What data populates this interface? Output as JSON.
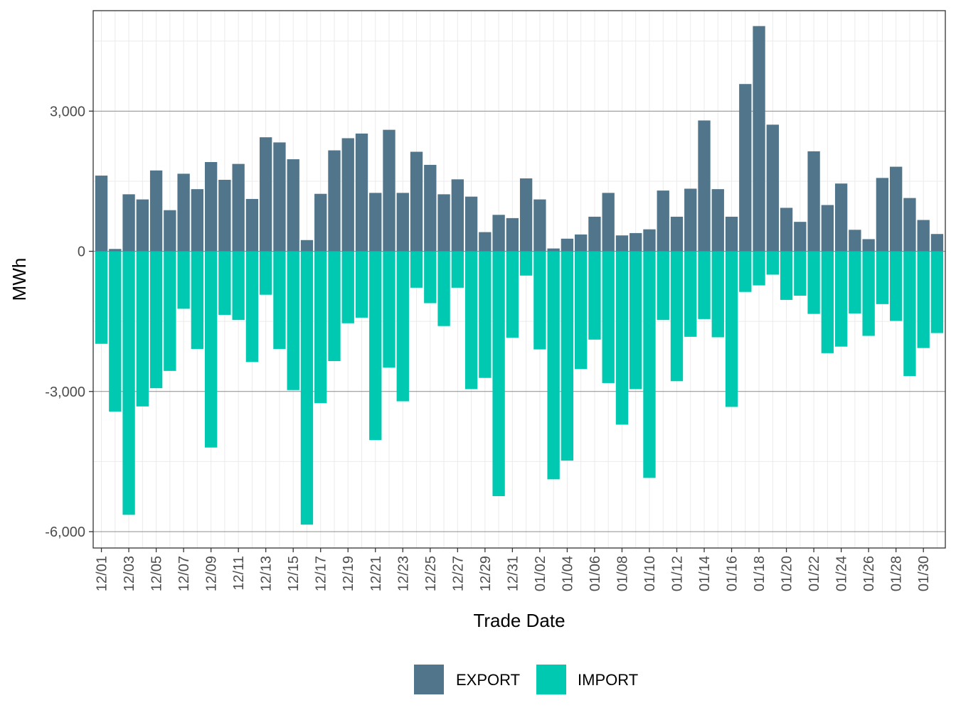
{
  "chart_data": {
    "type": "bar",
    "stacked": true,
    "title": "",
    "xlabel": "Trade Date",
    "ylabel": "MWh",
    "ylim": [
      -6350,
      5150
    ],
    "y_ticks": [
      3000,
      0,
      -3000,
      -6000
    ],
    "y_tick_labels": [
      "3,000",
      "0",
      "-3,000",
      "-6,000"
    ],
    "grid": true,
    "legend_position": "bottom",
    "categories": [
      "12/01",
      "12/02",
      "12/03",
      "12/04",
      "12/05",
      "12/06",
      "12/07",
      "12/08",
      "12/09",
      "12/10",
      "12/11",
      "12/12",
      "12/13",
      "12/14",
      "12/15",
      "12/16",
      "12/17",
      "12/18",
      "12/19",
      "12/20",
      "12/21",
      "12/22",
      "12/23",
      "12/24",
      "12/25",
      "12/26",
      "12/27",
      "12/28",
      "12/29",
      "12/30",
      "12/31",
      "01/01",
      "01/02",
      "01/03",
      "01/04",
      "01/05",
      "01/06",
      "01/07",
      "01/08",
      "01/09",
      "01/10",
      "01/11",
      "01/12",
      "01/13",
      "01/14",
      "01/15",
      "01/16",
      "01/17",
      "01/18",
      "01/19",
      "01/20",
      "01/21",
      "01/22",
      "01/23",
      "01/24",
      "01/25",
      "01/26",
      "01/27",
      "01/28",
      "01/29",
      "01/30",
      "01/31"
    ],
    "x_tick_labels": [
      "12/01",
      "12/03",
      "12/05",
      "12/07",
      "12/09",
      "12/11",
      "12/13",
      "12/15",
      "12/17",
      "12/19",
      "12/21",
      "12/23",
      "12/25",
      "12/27",
      "12/29",
      "12/31",
      "01/02",
      "01/04",
      "01/06",
      "01/08",
      "01/10",
      "01/12",
      "01/14",
      "01/16",
      "01/18",
      "01/20",
      "01/22",
      "01/24",
      "01/26",
      "01/28",
      "01/30"
    ],
    "series": [
      {
        "name": "EXPORT",
        "color": "#51758a",
        "values": [
          1620,
          50,
          1220,
          1110,
          1730,
          880,
          1660,
          1330,
          1910,
          1530,
          1870,
          1120,
          2440,
          2330,
          1970,
          240,
          1230,
          2160,
          2420,
          2520,
          1250,
          2600,
          1250,
          2130,
          1850,
          1220,
          1540,
          1170,
          410,
          780,
          710,
          1560,
          1110,
          60,
          270,
          360,
          740,
          1250,
          340,
          390,
          470,
          1300,
          740,
          1340,
          2800,
          1330,
          740,
          3580,
          4820,
          2710,
          930,
          630,
          2140,
          990,
          1450,
          460,
          260,
          1570,
          1810,
          1140,
          670,
          370
        ]
      },
      {
        "name": "IMPORT",
        "color": "#00c9b1",
        "values": [
          -1980,
          -3430,
          -5640,
          -3320,
          -2930,
          -2560,
          -1230,
          -2090,
          -4200,
          -1360,
          -1470,
          -2370,
          -930,
          -2090,
          -2970,
          -5850,
          -3250,
          -2350,
          -1540,
          -1420,
          -4040,
          -2490,
          -3210,
          -780,
          -1110,
          -1600,
          -780,
          -2950,
          -2710,
          -5240,
          -1850,
          -520,
          -2100,
          -4880,
          -4480,
          -2520,
          -1890,
          -2820,
          -3710,
          -2950,
          -4850,
          -1470,
          -2780,
          -1830,
          -1450,
          -1840,
          -3330,
          -870,
          -730,
          -500,
          -1040,
          -950,
          -1340,
          -2180,
          -2040,
          -1330,
          -1810,
          -1130,
          -1490,
          -2670,
          -2070,
          -1750
        ]
      }
    ]
  }
}
